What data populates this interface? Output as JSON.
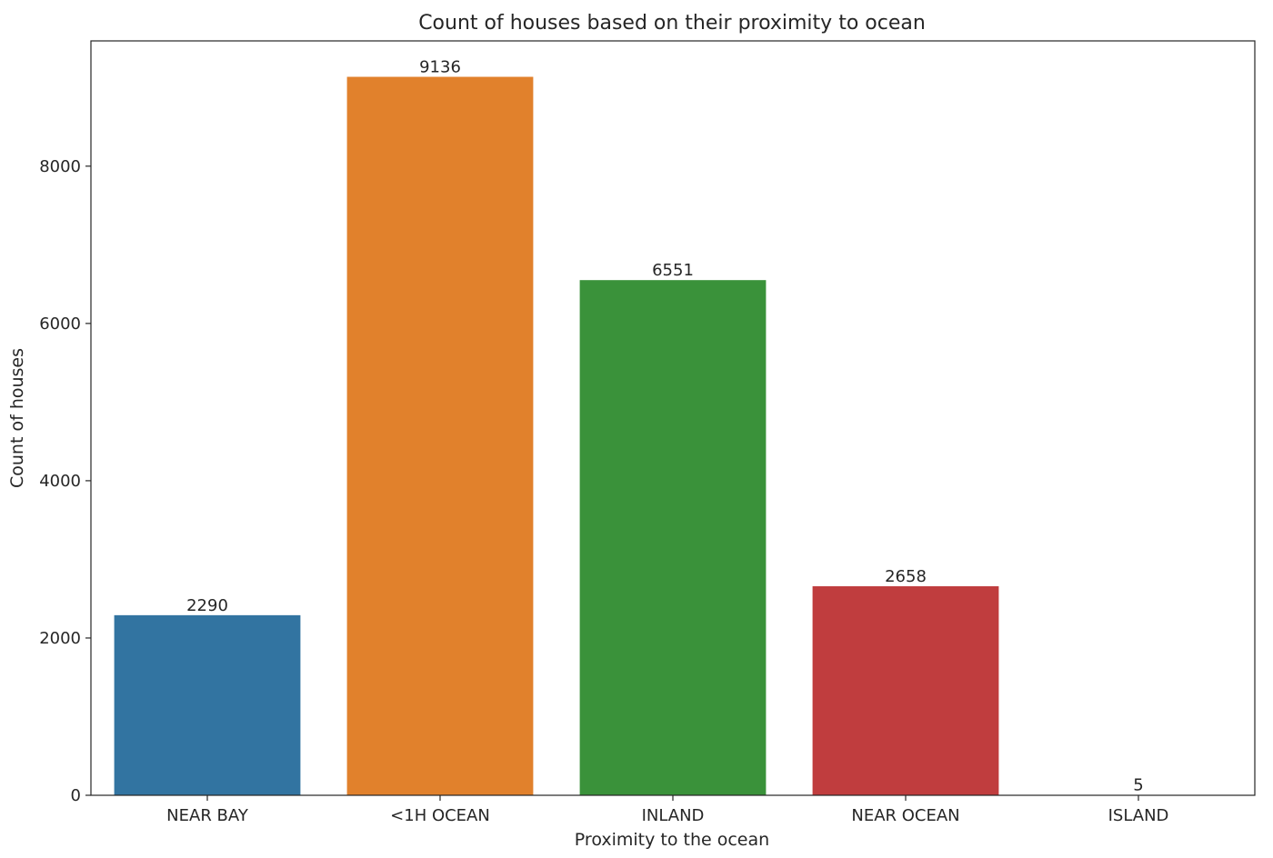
{
  "chart_data": {
    "type": "bar",
    "title": "Count of houses based on their proximity to ocean",
    "xlabel": "Proximity to the ocean",
    "ylabel": "Count of houses",
    "categories": [
      "NEAR BAY",
      "<1H OCEAN",
      "INLAND",
      "NEAR OCEAN",
      "ISLAND"
    ],
    "values": [
      2290,
      9136,
      6551,
      2658,
      5
    ],
    "data_labels": [
      "2290",
      "9136",
      "6551",
      "2658",
      "5"
    ],
    "colors": [
      "#3274a1",
      "#e1812c",
      "#3a923a",
      "#c03d3e",
      "#9372b2"
    ],
    "ylim": [
      0,
      9592.8
    ],
    "yticks": [
      0,
      2000,
      4000,
      6000,
      8000
    ],
    "ytick_labels": [
      "0",
      "2000",
      "4000",
      "6000",
      "8000"
    ],
    "grid": false,
    "legend": "none"
  }
}
